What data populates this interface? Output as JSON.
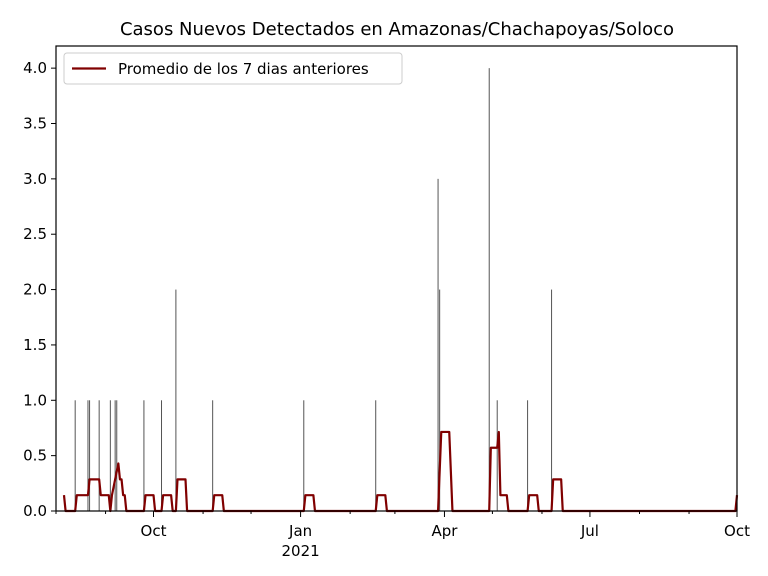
{
  "chart_data": {
    "type": "bar+line",
    "title": "Casos Nuevos Detectados en Amazonas/Chachapoyas/Soloco",
    "xlabel": "",
    "ylabel": "",
    "x_range": [
      "2020-08-01",
      "2021-10-01"
    ],
    "ylim": [
      0,
      4.2
    ],
    "y_ticks": [
      0.0,
      0.5,
      1.0,
      1.5,
      2.0,
      2.5,
      3.0,
      3.5,
      4.0
    ],
    "y_tick_labels": [
      "0.0",
      "0.5",
      "1.0",
      "1.5",
      "2.0",
      "2.5",
      "3.0",
      "3.5",
      "4.0"
    ],
    "x_major_ticks": [
      {
        "date": "2020-10-01",
        "label": "Oct",
        "sublabel": ""
      },
      {
        "date": "2021-01-01",
        "label": "Jan",
        "sublabel": "2021"
      },
      {
        "date": "2021-04-01",
        "label": "Apr",
        "sublabel": ""
      },
      {
        "date": "2021-07-01",
        "label": "Jul",
        "sublabel": ""
      },
      {
        "date": "2021-10-01",
        "label": "Oct",
        "sublabel": ""
      }
    ],
    "x_minor_ticks": [
      "2020-08-01",
      "2020-09-01",
      "2020-11-01",
      "2020-12-01",
      "2021-02-01",
      "2021-03-01",
      "2021-05-01",
      "2021-06-01",
      "2021-08-01",
      "2021-09-01"
    ],
    "grid": false,
    "legend_position": "top-left",
    "bar_color": "#555555",
    "line_color": "#800000",
    "daily_cases": [
      {
        "date": "2020-08-13",
        "value": 1
      },
      {
        "date": "2020-08-21",
        "value": 1
      },
      {
        "date": "2020-08-22",
        "value": 1
      },
      {
        "date": "2020-08-28",
        "value": 1
      },
      {
        "date": "2020-09-04",
        "value": 1
      },
      {
        "date": "2020-09-07",
        "value": 1
      },
      {
        "date": "2020-09-08",
        "value": 1
      },
      {
        "date": "2020-09-25",
        "value": 1
      },
      {
        "date": "2020-10-06",
        "value": 1
      },
      {
        "date": "2020-10-15",
        "value": 2
      },
      {
        "date": "2020-11-07",
        "value": 1
      },
      {
        "date": "2021-01-03",
        "value": 1
      },
      {
        "date": "2021-02-17",
        "value": 1
      },
      {
        "date": "2021-03-28",
        "value": 3
      },
      {
        "date": "2021-03-29",
        "value": 2
      },
      {
        "date": "2021-04-29",
        "value": 4
      },
      {
        "date": "2021-05-04",
        "value": 1
      },
      {
        "date": "2021-05-23",
        "value": 1
      },
      {
        "date": "2021-06-07",
        "value": 2
      },
      {
        "date": "2021-10-01",
        "value": 1
      }
    ],
    "series": [
      {
        "name": "Promedio de los 7 dias anteriores",
        "points": [
          [
            "2020-08-06",
            0.143
          ],
          [
            "2020-08-07",
            0.0
          ],
          [
            "2020-08-13",
            0.0
          ],
          [
            "2020-08-14",
            0.143
          ],
          [
            "2020-08-21",
            0.143
          ],
          [
            "2020-08-22",
            0.286
          ],
          [
            "2020-08-28",
            0.286
          ],
          [
            "2020-08-29",
            0.143
          ],
          [
            "2020-09-03",
            0.143
          ],
          [
            "2020-09-04",
            0.0
          ],
          [
            "2020-09-05",
            0.143
          ],
          [
            "2020-09-07",
            0.286
          ],
          [
            "2020-09-09",
            0.429
          ],
          [
            "2020-09-10",
            0.286
          ],
          [
            "2020-09-11",
            0.286
          ],
          [
            "2020-09-12",
            0.143
          ],
          [
            "2020-09-13",
            0.143
          ],
          [
            "2020-09-14",
            0.0
          ],
          [
            "2020-09-25",
            0.0
          ],
          [
            "2020-09-26",
            0.143
          ],
          [
            "2020-10-01",
            0.143
          ],
          [
            "2020-10-02",
            0.0
          ],
          [
            "2020-10-06",
            0.0
          ],
          [
            "2020-10-07",
            0.143
          ],
          [
            "2020-10-12",
            0.143
          ],
          [
            "2020-10-13",
            0.0
          ],
          [
            "2020-10-15",
            0.0
          ],
          [
            "2020-10-16",
            0.286
          ],
          [
            "2020-10-21",
            0.286
          ],
          [
            "2020-10-22",
            0.0
          ],
          [
            "2020-11-07",
            0.0
          ],
          [
            "2020-11-08",
            0.143
          ],
          [
            "2020-11-13",
            0.143
          ],
          [
            "2020-11-14",
            0.0
          ],
          [
            "2021-01-03",
            0.0
          ],
          [
            "2021-01-04",
            0.143
          ],
          [
            "2021-01-09",
            0.143
          ],
          [
            "2021-01-10",
            0.0
          ],
          [
            "2021-02-17",
            0.0
          ],
          [
            "2021-02-18",
            0.143
          ],
          [
            "2021-02-23",
            0.143
          ],
          [
            "2021-02-24",
            0.0
          ],
          [
            "2021-03-28",
            0.0
          ],
          [
            "2021-03-30",
            0.714
          ],
          [
            "2021-04-04",
            0.714
          ],
          [
            "2021-04-06",
            0.0
          ],
          [
            "2021-04-29",
            0.0
          ],
          [
            "2021-04-30",
            0.571
          ],
          [
            "2021-05-04",
            0.571
          ],
          [
            "2021-05-05",
            0.714
          ],
          [
            "2021-05-06",
            0.143
          ],
          [
            "2021-05-10",
            0.143
          ],
          [
            "2021-05-11",
            0.0
          ],
          [
            "2021-05-23",
            0.0
          ],
          [
            "2021-05-24",
            0.143
          ],
          [
            "2021-05-29",
            0.143
          ],
          [
            "2021-05-30",
            0.0
          ],
          [
            "2021-06-07",
            0.0
          ],
          [
            "2021-06-08",
            0.286
          ],
          [
            "2021-06-13",
            0.286
          ],
          [
            "2021-06-14",
            0.0
          ],
          [
            "2021-09-30",
            0.0
          ],
          [
            "2021-10-01",
            0.143
          ]
        ]
      }
    ]
  }
}
